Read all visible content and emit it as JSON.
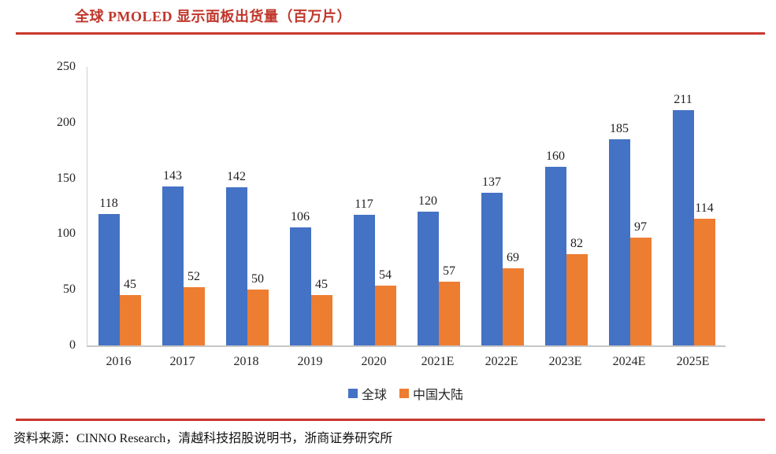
{
  "page": {
    "source_note": "资料来源：CINNO Research，清越科技招股说明书，浙商证券研究所"
  },
  "colors": {
    "accent_red": "#c0362b",
    "rule_red": "#c8382d",
    "axis_gray": "#c6c6c6",
    "series_global_blue": "#4472C4",
    "series_china_orange": "#ED7D31"
  },
  "chart_data": {
    "type": "bar",
    "title": "全球 PMOLED 显示面板出货量（百万片）",
    "categories": [
      "2016",
      "2017",
      "2018",
      "2019",
      "2020",
      "2021E",
      "2022E",
      "2023E",
      "2024E",
      "2025E"
    ],
    "series": [
      {
        "name": "全球",
        "color": "#4472C4",
        "values": [
          118,
          143,
          142,
          106,
          117,
          120,
          137,
          160,
          185,
          211
        ]
      },
      {
        "name": "中国大陆",
        "color": "#ED7D31",
        "values": [
          45,
          52,
          50,
          45,
          54,
          57,
          69,
          82,
          97,
          114
        ]
      }
    ],
    "xlabel": "",
    "ylabel": "",
    "ylim": [
      0,
      250
    ],
    "yticks": [
      0,
      50,
      100,
      150,
      200,
      250
    ],
    "grid": false,
    "legend_position": "bottom",
    "data_labels": true
  }
}
